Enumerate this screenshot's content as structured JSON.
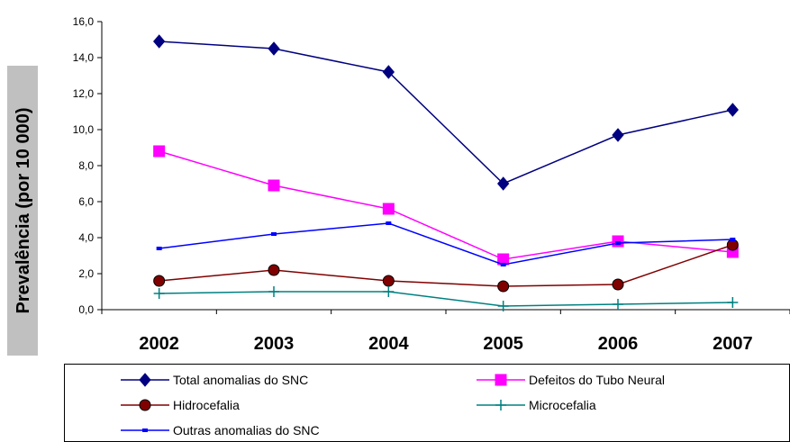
{
  "chart_data": {
    "type": "line",
    "title": "",
    "xlabel": "",
    "ylabel": "Prevalência (por 10 000)",
    "categories": [
      "2002",
      "2003",
      "2004",
      "2005",
      "2006",
      "2007"
    ],
    "ylim": [
      0,
      16
    ],
    "yticks": [
      "0,0",
      "2,0",
      "4,0",
      "6,0",
      "8,0",
      "10,0",
      "12,0",
      "14,0",
      "16,0"
    ],
    "grid": false,
    "legend_position": "bottom",
    "series": [
      {
        "name": "Total anomalias do SNC",
        "values": [
          14.9,
          14.5,
          13.2,
          7.0,
          9.7,
          11.1
        ],
        "color": "#000080",
        "marker": "diamond"
      },
      {
        "name": "Defeitos do Tubo Neural",
        "values": [
          8.8,
          6.9,
          5.6,
          2.8,
          3.8,
          3.2
        ],
        "color": "#ff00ff",
        "marker": "square"
      },
      {
        "name": "Hidrocefalia",
        "values": [
          1.6,
          2.2,
          1.6,
          1.3,
          1.4,
          3.6
        ],
        "color": "#800000",
        "marker": "circle"
      },
      {
        "name": "Microcefalia",
        "values": [
          0.9,
          1.0,
          1.0,
          0.2,
          0.3,
          0.4
        ],
        "color": "#008080",
        "marker": "plus"
      },
      {
        "name": "Outras anomalias do SNC",
        "values": [
          3.4,
          4.2,
          4.8,
          2.5,
          3.7,
          3.9
        ],
        "color": "#0000ff",
        "marker": "dash"
      }
    ]
  }
}
